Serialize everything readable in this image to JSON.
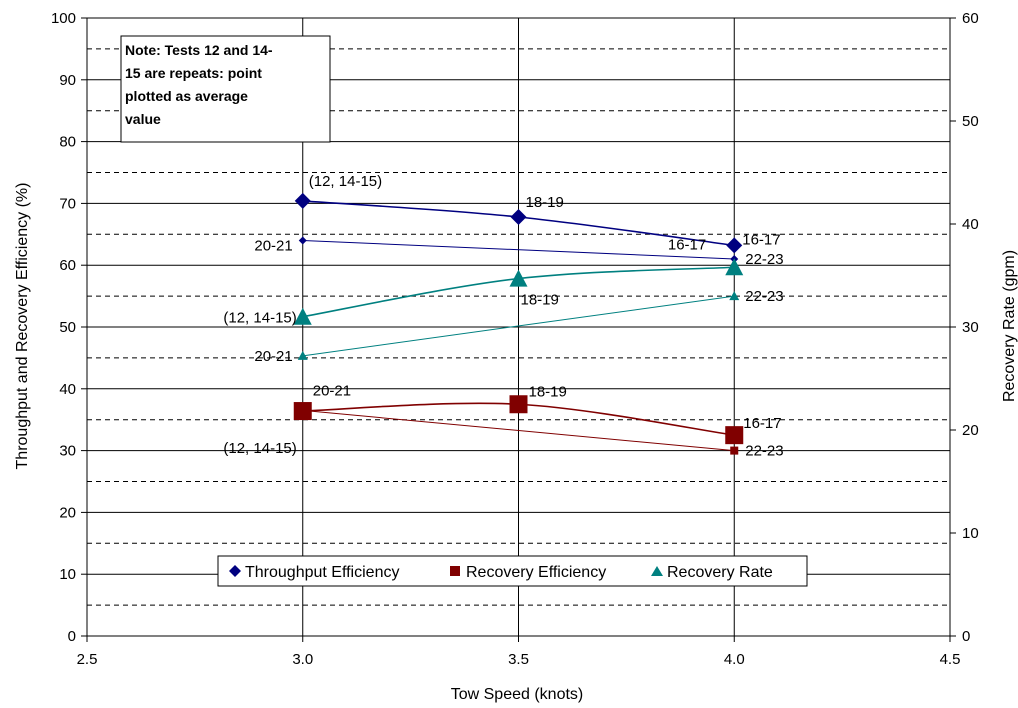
{
  "chart_data": {
    "type": "line",
    "xlabel": "Tow Speed (knots)",
    "ylabel": "Throughput and Recovery Efficiency (%)",
    "y2label": "Recovery Rate (gpm)",
    "xlim": [
      2.5,
      4.5
    ],
    "ylim": [
      0,
      100
    ],
    "y2lim": [
      0,
      60
    ],
    "x_ticks": [
      "2.5",
      "3.0",
      "3.5",
      "4.0",
      "4.5"
    ],
    "y_ticks": [
      "0",
      "10",
      "20",
      "30",
      "40",
      "50",
      "60",
      "70",
      "80",
      "90",
      "100"
    ],
    "y2_ticks": [
      "0",
      "10",
      "20",
      "30",
      "40",
      "50",
      "60"
    ],
    "grid": "major solid, minor dashed",
    "legend_position": "bottom-center",
    "note": [
      "Note: Tests 12 and 14-",
      "15 are repeats: point",
      "plotted as average",
      "value"
    ],
    "series": [
      {
        "name": "Throughput Efficiency",
        "color": "#000080",
        "marker": "diamond",
        "axis": "left",
        "x": [
          3.0,
          3.5,
          4.0
        ],
        "values": [
          70.4,
          67.8,
          63.2
        ],
        "labels": [
          "(12, 14-15)",
          "18-19",
          "16-17"
        ],
        "smooth": true
      },
      {
        "name": "",
        "color": "#000080",
        "marker": "diamond-small",
        "axis": "left",
        "x": [
          3.0,
          4.0
        ],
        "values": [
          64.0,
          61.0
        ],
        "labels": [
          "20-21",
          "22-23"
        ],
        "smooth": false
      },
      {
        "name": "Recovery Efficiency",
        "color": "#800000",
        "marker": "square",
        "axis": "left",
        "x": [
          3.0,
          3.5,
          4.0
        ],
        "values": [
          36.4,
          37.5,
          32.5
        ],
        "labels": [
          "(12, 14-15)",
          "18-19",
          "16-17"
        ],
        "smooth": true
      },
      {
        "name": "",
        "color": "#800000",
        "marker": "square-small",
        "axis": "left",
        "x": [
          3.0,
          4.0
        ],
        "values": [
          36.5,
          30.0
        ],
        "labels": [
          "20-21",
          "22-23"
        ],
        "smooth": false
      },
      {
        "name": "Recovery Rate",
        "color": "#008080",
        "marker": "triangle",
        "axis": "right",
        "x": [
          3.0,
          3.5,
          4.0
        ],
        "values": [
          31.0,
          34.7,
          35.8
        ],
        "labels": [
          "(12, 14-15)",
          "18-19",
          "16-17"
        ],
        "smooth": true
      },
      {
        "name": "",
        "color": "#008080",
        "marker": "triangle-small",
        "axis": "right",
        "x": [
          3.0,
          4.0
        ],
        "values": [
          27.2,
          33.0
        ],
        "labels": [
          "20-21",
          "22-23"
        ],
        "smooth": false
      }
    ]
  }
}
